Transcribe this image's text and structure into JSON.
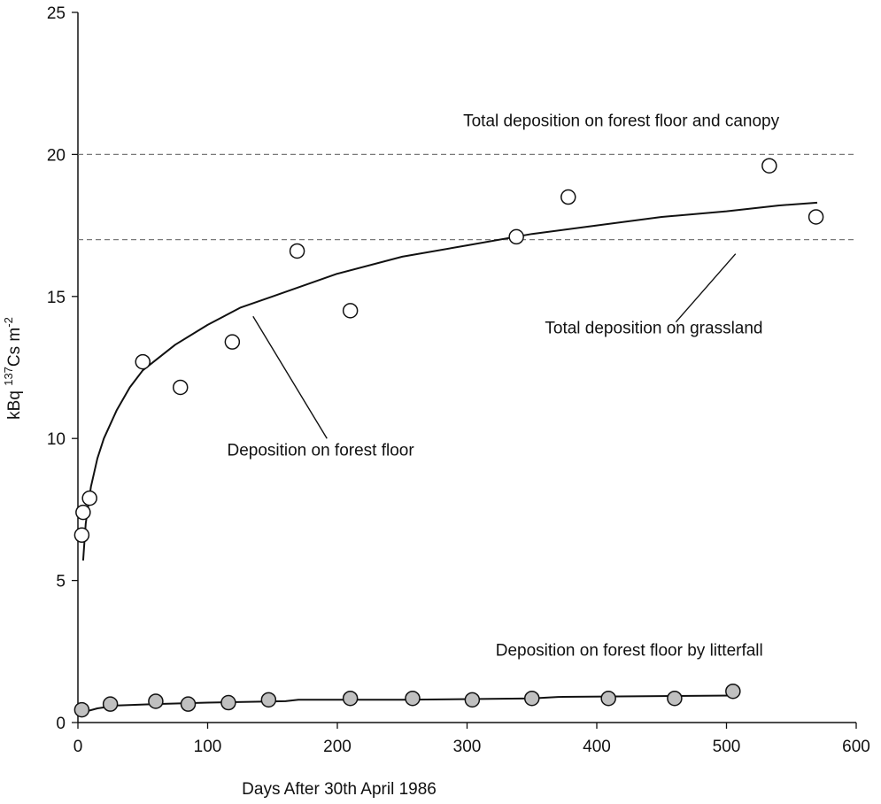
{
  "chart_data": {
    "type": "scatter",
    "title": "",
    "xlabel": "Days After 30th April 1986",
    "ylabel": {
      "prefix": "kBq ",
      "sup": "137",
      "mid": "Cs m",
      "sup2": "-2"
    },
    "xlim": [
      0,
      600
    ],
    "ylim": [
      0,
      25
    ],
    "x_ticks": [
      "0",
      "100",
      "200",
      "300",
      "400",
      "500",
      "600"
    ],
    "y_ticks": [
      "0",
      "5",
      "10",
      "15",
      "20",
      "25"
    ],
    "grid": false,
    "legend": "none",
    "series": [
      {
        "marker": "open-circle",
        "points": [
          {
            "x": 3,
            "y": 6.6
          },
          {
            "x": 4,
            "y": 7.4
          },
          {
            "x": 9,
            "y": 7.9
          },
          {
            "x": 50,
            "y": 12.7
          },
          {
            "x": 79,
            "y": 11.8
          },
          {
            "x": 119,
            "y": 13.4
          },
          {
            "x": 169,
            "y": 16.6
          },
          {
            "x": 210,
            "y": 14.5
          },
          {
            "x": 338,
            "y": 17.1
          },
          {
            "x": 378,
            "y": 18.5
          },
          {
            "x": 533,
            "y": 19.6
          },
          {
            "x": 569,
            "y": 17.8
          }
        ],
        "fit": [
          {
            "x": 4,
            "y": 5.7
          },
          {
            "x": 6,
            "y": 7.0
          },
          {
            "x": 10,
            "y": 8.3
          },
          {
            "x": 15,
            "y": 9.3
          },
          {
            "x": 20,
            "y": 10.0
          },
          {
            "x": 30,
            "y": 11.0
          },
          {
            "x": 40,
            "y": 11.8
          },
          {
            "x": 50,
            "y": 12.4
          },
          {
            "x": 75,
            "y": 13.3
          },
          {
            "x": 100,
            "y": 14.0
          },
          {
            "x": 125,
            "y": 14.6
          },
          {
            "x": 150,
            "y": 15.0
          },
          {
            "x": 200,
            "y": 15.8
          },
          {
            "x": 250,
            "y": 16.4
          },
          {
            "x": 300,
            "y": 16.8
          },
          {
            "x": 350,
            "y": 17.2
          },
          {
            "x": 400,
            "y": 17.5
          },
          {
            "x": 450,
            "y": 17.8
          },
          {
            "x": 500,
            "y": 18.0
          },
          {
            "x": 540,
            "y": 18.2
          },
          {
            "x": 570,
            "y": 18.3
          }
        ]
      },
      {
        "marker": "filled-circle",
        "points": [
          {
            "x": 3,
            "y": 0.45
          },
          {
            "x": 25,
            "y": 0.65
          },
          {
            "x": 60,
            "y": 0.75
          },
          {
            "x": 85,
            "y": 0.65
          },
          {
            "x": 116,
            "y": 0.7
          },
          {
            "x": 147,
            "y": 0.8
          },
          {
            "x": 210,
            "y": 0.85
          },
          {
            "x": 258,
            "y": 0.85
          },
          {
            "x": 304,
            "y": 0.8
          },
          {
            "x": 350,
            "y": 0.85
          },
          {
            "x": 409,
            "y": 0.85
          },
          {
            "x": 460,
            "y": 0.85
          },
          {
            "x": 505,
            "y": 1.1
          }
        ],
        "fit": [
          {
            "x": 3,
            "y": 0.35
          },
          {
            "x": 15,
            "y": 0.5
          },
          {
            "x": 30,
            "y": 0.6
          },
          {
            "x": 60,
            "y": 0.65
          },
          {
            "x": 100,
            "y": 0.7
          },
          {
            "x": 160,
            "y": 0.75
          },
          {
            "x": 170,
            "y": 0.8
          },
          {
            "x": 250,
            "y": 0.8
          },
          {
            "x": 350,
            "y": 0.85
          },
          {
            "x": 370,
            "y": 0.9
          },
          {
            "x": 505,
            "y": 0.95
          }
        ]
      }
    ],
    "reference_lines": [
      {
        "y": 20.0,
        "style": "dashed",
        "label": "Total deposition on forest floor and canopy"
      },
      {
        "y": 17.0,
        "style": "dashed",
        "label": "Total deposition on grassland"
      }
    ],
    "annotations": [
      {
        "text": "Total deposition on forest floor and canopy",
        "x": 297,
        "y": 21.0,
        "anchor": "start"
      },
      {
        "text": "Total deposition on grassland",
        "x": 360,
        "y": 13.7,
        "anchor": "start"
      },
      {
        "text": "Deposition on forest floor",
        "x": 115,
        "y": 9.4,
        "anchor": "start"
      },
      {
        "text": "Deposition on forest floor by litterfall",
        "x": 322,
        "y": 2.35,
        "anchor": "start"
      }
    ],
    "leader_lines": [
      {
        "from": {
          "x": 135,
          "y": 14.3
        },
        "to": {
          "x": 192,
          "y": 10.0
        }
      },
      {
        "from": {
          "x": 507,
          "y": 16.5
        },
        "to": {
          "x": 461,
          "y": 14.1
        }
      }
    ],
    "colors": {
      "open_marker_fill": "#ffffff",
      "filled_marker_fill": "#c0c0c0",
      "line": "#111111",
      "dashed": "#7a7a7a"
    }
  }
}
